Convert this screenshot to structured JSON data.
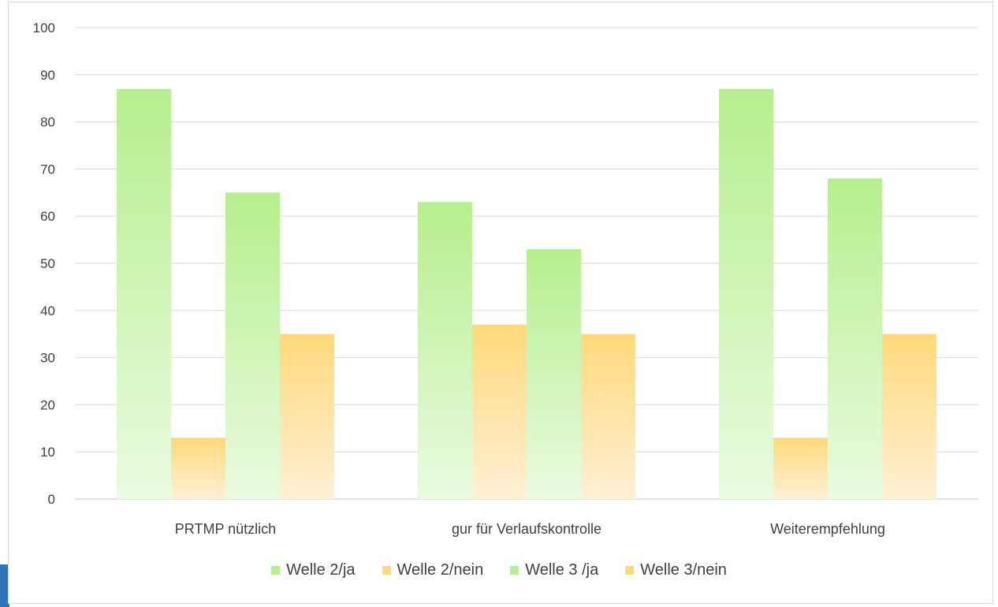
{
  "chart_data": {
    "type": "bar",
    "title": "",
    "xlabel": "",
    "ylabel": "",
    "categories": [
      "PRTMP nützlich",
      "gur für Verlaufskontrolle",
      "Weiterempfehlung"
    ],
    "series": [
      {
        "name": "Welle 2/ja",
        "values": [
          87,
          63,
          87
        ],
        "color": "#b6ef8e"
      },
      {
        "name": "Welle 2/nein",
        "values": [
          13,
          37,
          13
        ],
        "color": "#ffd97a"
      },
      {
        "name": "Welle 3 /ja",
        "values": [
          65,
          53,
          68
        ],
        "color": "#b6ef8e"
      },
      {
        "name": "Welle 3/nein",
        "values": [
          35,
          35,
          35
        ],
        "color": "#ffd97a"
      }
    ],
    "ylim": [
      0,
      100
    ],
    "yticks": [
      0,
      10,
      20,
      30,
      40,
      50,
      60,
      70,
      80,
      90,
      100
    ],
    "grid": true,
    "legend_position": "bottom",
    "colors": {
      "green_top": "#b6ef8e",
      "green_bottom": "#eafbe0",
      "orange_top": "#ffd97a",
      "orange_bottom": "#fff0d6",
      "grid": "#d9d9d9",
      "text": "#404040"
    }
  }
}
